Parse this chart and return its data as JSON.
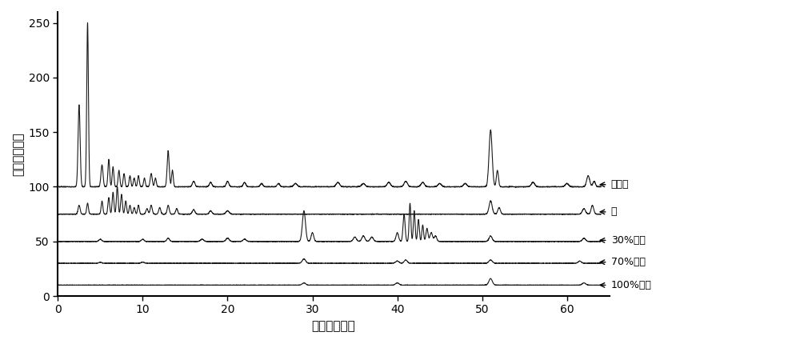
{
  "xlabel": "时间（分钟）",
  "ylabel": "强度（毫伏）",
  "xlim": [
    0,
    65
  ],
  "ylim": [
    0,
    260
  ],
  "yticks": [
    0,
    50,
    100,
    150,
    200,
    250
  ],
  "xticks": [
    0,
    10,
    20,
    30,
    40,
    50,
    60
  ],
  "background_color": "#ffffff",
  "line_color": "#1a1a1a",
  "legend_labels": [
    "上样液",
    "水",
    "30%乙醇",
    "70%乙醇",
    "100%乙醇"
  ],
  "legend_y_positions": [
    102,
    77,
    51,
    31,
    10
  ],
  "baselines": [
    100,
    75,
    50,
    30,
    10
  ],
  "fig_width": 10.0,
  "fig_height": 4.3
}
